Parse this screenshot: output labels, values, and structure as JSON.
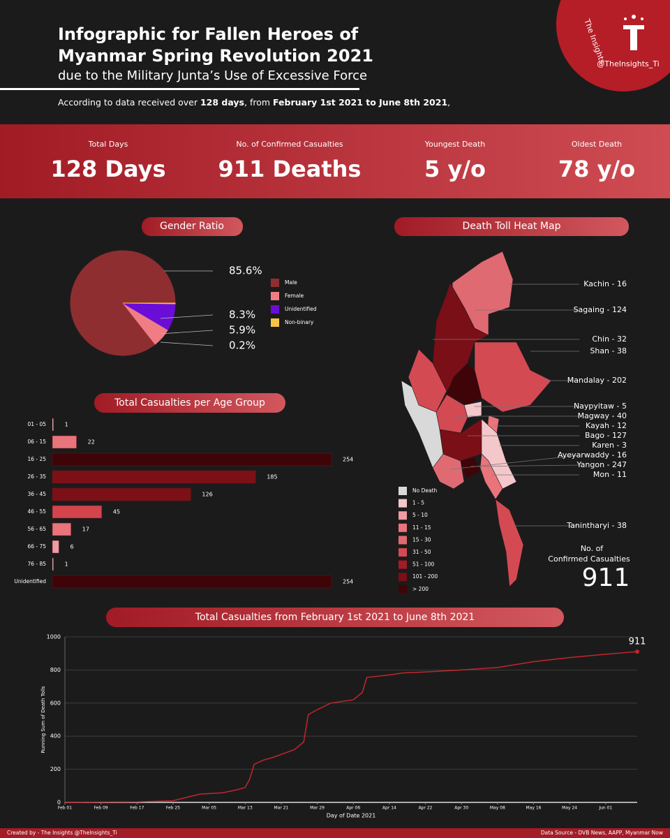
{
  "header": {
    "title_line1": "Infographic for Fallen Heroes of",
    "title_line2": "Myanmar Spring Revolution 2021",
    "subtitle": "due to the Military Junta’s Use of Excessive Force",
    "intro": [
      "According to data received over ",
      "128 days",
      ", from ",
      "February 1st 2021 to June 8th 2021",
      ","
    ]
  },
  "badge": {
    "top": "The Insights",
    "handle": "@TheInsights_Ti"
  },
  "stats": [
    {
      "label": "Total Days",
      "value": "128 Days"
    },
    {
      "label": "No. of Confirmed Casualties",
      "value": "911 Deaths"
    },
    {
      "label": "Youngest Death",
      "value": "5 y/o"
    },
    {
      "label": "Oldest Death",
      "value": "78 y/o"
    }
  ],
  "chart_data": [
    {
      "type": "pie",
      "title": "Gender Ratio",
      "categories": [
        "Male",
        "Female",
        "Unidentified",
        "Non-binary"
      ],
      "values": [
        85.6,
        5.9,
        8.3,
        0.2
      ],
      "value_labels": [
        "85.6%",
        "5.9%",
        "8.3%",
        "0.2%"
      ],
      "colors": [
        "#8e2e31",
        "#f07d84",
        "#6a0dd6",
        "#f5c542"
      ]
    },
    {
      "type": "hbar",
      "title": "Total Casualties per Age Group",
      "categories": [
        "01 - 05",
        "06 - 15",
        "16 - 25",
        "26 - 35",
        "36 - 45",
        "46 - 55",
        "56 - 65",
        "66 - 75",
        "76 - 85",
        "Unidentified"
      ],
      "values": [
        1,
        22,
        254,
        185,
        126,
        45,
        17,
        6,
        1,
        254
      ],
      "colors": [
        "#f4c7cb",
        "#e9747b",
        "#3f0407",
        "#7d1016",
        "#7d1016",
        "#d4444d",
        "#e9747b",
        "#ee9ca2",
        "#f4c7cb",
        "#3f0407"
      ]
    },
    {
      "type": "line",
      "title": "Total Casualties from February 1st 2021 to June 8th 2021",
      "x_label": "Day of Date 2021",
      "y_label": "Running Sum of Death Tolls",
      "color": "#c0272d",
      "x": [
        "2021-02-01",
        "2021-02-09",
        "2021-02-17",
        "2021-02-25",
        "2021-02-28",
        "2021-03-03",
        "2021-03-08",
        "2021-03-11",
        "2021-03-13",
        "2021-03-14",
        "2021-03-15",
        "2021-03-17",
        "2021-03-19",
        "2021-03-21",
        "2021-03-24",
        "2021-03-26",
        "2021-03-27",
        "2021-03-29",
        "2021-04-01",
        "2021-04-06",
        "2021-04-08",
        "2021-04-09",
        "2021-04-14",
        "2021-04-17",
        "2021-04-22",
        "2021-04-30",
        "2021-05-08",
        "2021-05-16",
        "2021-05-24",
        "2021-06-01",
        "2021-06-08"
      ],
      "values": [
        0,
        2,
        3,
        10,
        30,
        50,
        58,
        75,
        90,
        140,
        230,
        255,
        270,
        290,
        320,
        365,
        530,
        560,
        600,
        620,
        665,
        755,
        770,
        782,
        788,
        800,
        815,
        850,
        875,
        895,
        911
      ],
      "xlim": [
        "2021-02-01",
        "2021-06-08"
      ],
      "xticks": [
        {
          "value": "2021-02-01",
          "label": "Feb 01"
        },
        {
          "value": "2021-02-09",
          "label": "Feb 09"
        },
        {
          "value": "2021-02-17",
          "label": "Feb 17"
        },
        {
          "value": "2021-02-25",
          "label": "Feb 25"
        },
        {
          "value": "2021-03-05",
          "label": "Mar 05"
        },
        {
          "value": "2021-03-13",
          "label": "Mar 13"
        },
        {
          "value": "2021-03-21",
          "label": "Mar 21"
        },
        {
          "value": "2021-03-29",
          "label": "Mar 29"
        },
        {
          "value": "2021-04-06",
          "label": "Apr 06"
        },
        {
          "value": "2021-04-14",
          "label": "Apr 14"
        },
        {
          "value": "2021-04-22",
          "label": "Apr 22"
        },
        {
          "value": "2021-04-30",
          "label": "Apr 30"
        },
        {
          "value": "2021-05-08",
          "label": "May 08"
        },
        {
          "value": "2021-05-16",
          "label": "May 16"
        },
        {
          "value": "2021-05-24",
          "label": "May 24"
        },
        {
          "value": "2021-06-01",
          "label": "Jun 01"
        }
      ],
      "ylim": [
        0,
        1000
      ],
      "yticks": [
        0,
        200,
        400,
        600,
        800,
        1000
      ],
      "grid": true
    }
  ],
  "map": {
    "title": "Death Toll Heat Map",
    "total_label": "No. of\nConfirmed Casualties",
    "total_label_lines": [
      "No. of",
      "Confirmed Casualties"
    ],
    "total": 911,
    "regions": [
      {
        "label": "Kachin - 16",
        "value": 16,
        "color": "#e06a72"
      },
      {
        "label": "Sagaing - 124",
        "value": 124,
        "color": "#7a0f17"
      },
      {
        "label": "Chin - 32",
        "value": 32,
        "color": "#d44a53"
      },
      {
        "label": "Shan - 38",
        "value": 38,
        "color": "#d44a53"
      },
      {
        "label": "Mandalay - 202",
        "value": 202,
        "color": "#3f0407"
      },
      {
        "label": "Naypyitaw - 5",
        "value": 5,
        "color": "#f4c7cb"
      },
      {
        "label": "Magway - 40",
        "value": 40,
        "color": "#d44a53"
      },
      {
        "label": "Kayah - 12",
        "value": 12,
        "color": "#e9747b"
      },
      {
        "label": "Bago - 127",
        "value": 127,
        "color": "#7a0f17"
      },
      {
        "label": "Karen - 3",
        "value": 3,
        "color": "#f4c7cb"
      },
      {
        "label": "Ayeyarwaddy - 16",
        "value": 16,
        "color": "#e06a72"
      },
      {
        "label": "Yangon - 247",
        "value": 247,
        "color": "#3f0407"
      },
      {
        "label": "Mon - 11",
        "value": 11,
        "color": "#e9747b"
      },
      {
        "label": "Tanintharyi - 38",
        "value": 38,
        "color": "#d44a53"
      }
    ],
    "legend": [
      {
        "label": "No Death",
        "color": "#d9d9d9"
      },
      {
        "label": "1 - 5",
        "color": "#f4c7cb"
      },
      {
        "label": "5 - 10",
        "color": "#ee9ca2"
      },
      {
        "label": "11 - 15",
        "color": "#e9747b"
      },
      {
        "label": "15 - 30",
        "color": "#e06a72"
      },
      {
        "label": "31 - 50",
        "color": "#d44a53"
      },
      {
        "label": "51 - 100",
        "color": "#a31c26"
      },
      {
        "label": "101 - 200",
        "color": "#7a0f17"
      },
      {
        "label": "> 200",
        "color": "#3f0407"
      }
    ]
  },
  "footer": {
    "left": "Created by - The Insights @TheInsights_Ti",
    "right": "Data Source - DVB News, AAPP, Myanmar Now"
  }
}
